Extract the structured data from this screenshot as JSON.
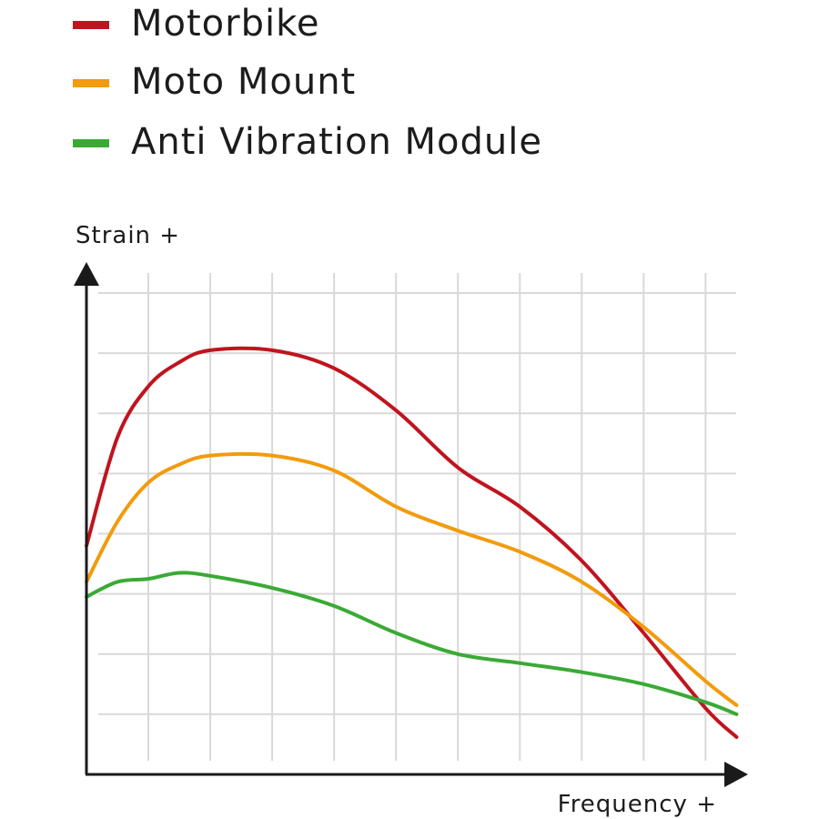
{
  "chart_data": {
    "type": "line",
    "ylabel": "Strain +",
    "xlabel": "Frequency +",
    "grid": true,
    "legend_position": "top-left",
    "x": [
      0,
      0.5,
      1,
      1.5,
      2,
      3,
      4,
      5,
      6,
      7,
      8,
      9,
      10,
      10.5
    ],
    "xlim": [
      0,
      10.7
    ],
    "ylim": [
      0,
      8.5
    ],
    "series": [
      {
        "name": "Motorbike",
        "color": "#c0141e",
        "values": [
          3.8,
          5.6,
          6.45,
          6.85,
          7.05,
          7.05,
          6.75,
          6.05,
          5.1,
          4.45,
          3.55,
          2.35,
          1.1,
          0.62
        ]
      },
      {
        "name": "Moto Mount",
        "color": "#f29b0c",
        "values": [
          3.2,
          4.2,
          4.85,
          5.15,
          5.3,
          5.3,
          5.05,
          4.45,
          4.05,
          3.7,
          3.2,
          2.45,
          1.55,
          1.15
        ]
      },
      {
        "name": "Anti Vibration Module",
        "color": "#3aaa35",
        "values": [
          2.95,
          3.2,
          3.25,
          3.35,
          3.3,
          3.1,
          2.8,
          2.35,
          2.0,
          1.85,
          1.7,
          1.5,
          1.2,
          1.0
        ]
      }
    ]
  }
}
